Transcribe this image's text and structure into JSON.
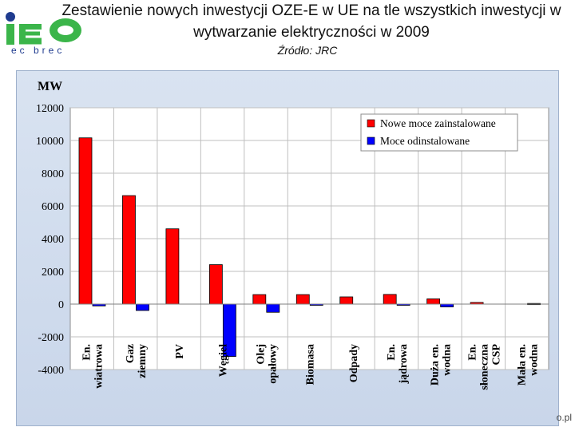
{
  "header": {
    "logo_letters": "IEO",
    "logo_subtitle": "ec brec",
    "title": "Zestawienie nowych inwestycji  OZE-E w UE na tle wszystkich inwestycji w wytwarzanie elektryczności w 2009",
    "source": "Źródło: JRC",
    "footer_fragment": "o.pl"
  },
  "colors": {
    "installed": "#ff0000",
    "decommissioned": "#0000ff",
    "logo_green": "#3bb54a",
    "logo_blue": "#1f3b8f"
  },
  "chart_data": {
    "type": "bar",
    "ylabel": "MW",
    "ylim": [
      -4000,
      12000
    ],
    "yticks": [
      12000,
      10000,
      8000,
      6000,
      4000,
      2000,
      0,
      -2000,
      -4000
    ],
    "grid": true,
    "legend_position": "top-right",
    "categories": [
      [
        "En.",
        "wiatrowa"
      ],
      [
        "Gaz",
        "ziemny"
      ],
      [
        "PV"
      ],
      [
        "Węgiel"
      ],
      [
        "Olej",
        "opałowy"
      ],
      [
        "Biomasa"
      ],
      [
        "Odpady"
      ],
      [
        "En.",
        "jądrowa"
      ],
      [
        "Duża en.",
        "wodna"
      ],
      [
        "En.",
        "słoneczna",
        "CSP"
      ],
      [
        "Mała en.",
        "wodna"
      ]
    ],
    "series": [
      {
        "name": "Nowe moce zainstalowane",
        "color": "#ff0000",
        "values": [
          10160,
          6630,
          4600,
          2410,
          580,
          580,
          440,
          590,
          320,
          100,
          0
        ]
      },
      {
        "name": "Moce odinstalowane",
        "color": "#0000ff",
        "values": [
          -110,
          -390,
          0,
          -3200,
          -500,
          -60,
          0,
          -50,
          -170,
          0,
          40
        ]
      }
    ]
  }
}
